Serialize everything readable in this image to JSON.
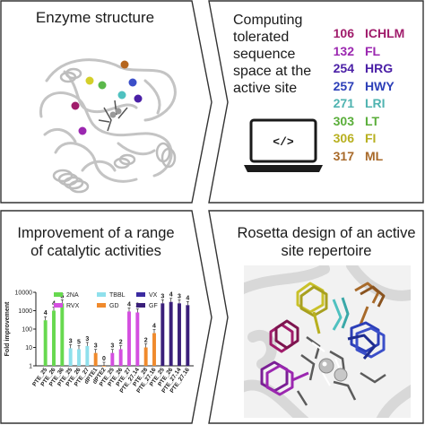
{
  "panels": {
    "enzyme": {
      "title": "Enzyme structure"
    },
    "computing": {
      "title_lines": [
        "Computing",
        "tolerated",
        "sequence",
        "space at the",
        "active site"
      ],
      "laptop_code": "</>"
    },
    "improvement": {
      "title_lines": [
        "Improvement of a range",
        "of catalytic activities"
      ]
    },
    "rosetta": {
      "title_lines": [
        "Rosetta design of an active",
        "site repertoire"
      ]
    }
  },
  "mutations": [
    {
      "position": "106",
      "residues": "ICHLM",
      "color": "#a01c6b"
    },
    {
      "position": "132",
      "residues": "FL",
      "color": "#9b27b0"
    },
    {
      "position": "254",
      "residues": "HRG",
      "color": "#4a1fa6"
    },
    {
      "position": "257",
      "residues": "HWY",
      "color": "#2c3fb8"
    },
    {
      "position": "271",
      "residues": "LRI",
      "color": "#4fb3b0"
    },
    {
      "position": "303",
      "residues": "LT",
      "color": "#5aae3a"
    },
    {
      "position": "306",
      "residues": "FI",
      "color": "#b8b020"
    },
    {
      "position": "317",
      "residues": "ML",
      "color": "#a86a2a"
    }
  ],
  "chart_data": {
    "type": "bar",
    "ylabel": "Fold improvement",
    "yscale": "log",
    "ylim": [
      1,
      10000
    ],
    "yticks": [
      "1",
      "10",
      "100",
      "1000",
      "10000"
    ],
    "legend": [
      {
        "name": "2NA",
        "color": "#67d94f"
      },
      {
        "name": "TBBL",
        "color": "#8fe0ec"
      },
      {
        "name": "VX",
        "color": "#3b2ba0"
      },
      {
        "name": "RVX",
        "color": "#d44fe0"
      },
      {
        "name": "GD",
        "color": "#f08a2c"
      },
      {
        "name": "GF",
        "color": "#3a1f7a"
      }
    ],
    "categories": [
      "PTE_25",
      "PTE_26",
      "PTE_36",
      "PTE_25",
      "PTE_26",
      "PTE_27",
      "dPTE1",
      "dPTE2",
      "PTE_25",
      "PTE_26",
      "PTE_27",
      "PTE_27.14",
      "PTE_28",
      "PTE_27.16",
      "PTE_25",
      "PTE_26",
      "PTE_27.14",
      "PTE_27.16"
    ],
    "bars": [
      {
        "substrate": "2NA",
        "value": 300,
        "label": "4"
      },
      {
        "substrate": "2NA",
        "value": 1000,
        "label": "4"
      },
      {
        "substrate": "2NA",
        "value": 2500,
        "label": "5"
      },
      {
        "substrate": "TBBL",
        "value": 9,
        "label": "3"
      },
      {
        "substrate": "TBBL",
        "value": 8,
        "label": "5"
      },
      {
        "substrate": "TBBL",
        "value": 12,
        "label": "3"
      },
      {
        "substrate": "GD",
        "value": 5,
        "label": "3"
      },
      {
        "substrate": "GD",
        "value": 1,
        "label": "0"
      },
      {
        "substrate": "RVX",
        "value": 5,
        "label": "3"
      },
      {
        "substrate": "RVX",
        "value": 8,
        "label": "2"
      },
      {
        "substrate": "RVX",
        "value": 900,
        "label": "4"
      },
      {
        "substrate": "RVX",
        "value": 800,
        "label": "3"
      },
      {
        "substrate": "GD",
        "value": 10,
        "label": "2"
      },
      {
        "substrate": "GD",
        "value": 60,
        "label": "4"
      },
      {
        "substrate": "GF",
        "value": 2500,
        "label": "3"
      },
      {
        "substrate": "GF",
        "value": 3000,
        "label": "4"
      },
      {
        "substrate": "GF",
        "value": 2500,
        "label": "3"
      },
      {
        "substrate": "GF",
        "value": 2000,
        "label": "4"
      }
    ]
  }
}
